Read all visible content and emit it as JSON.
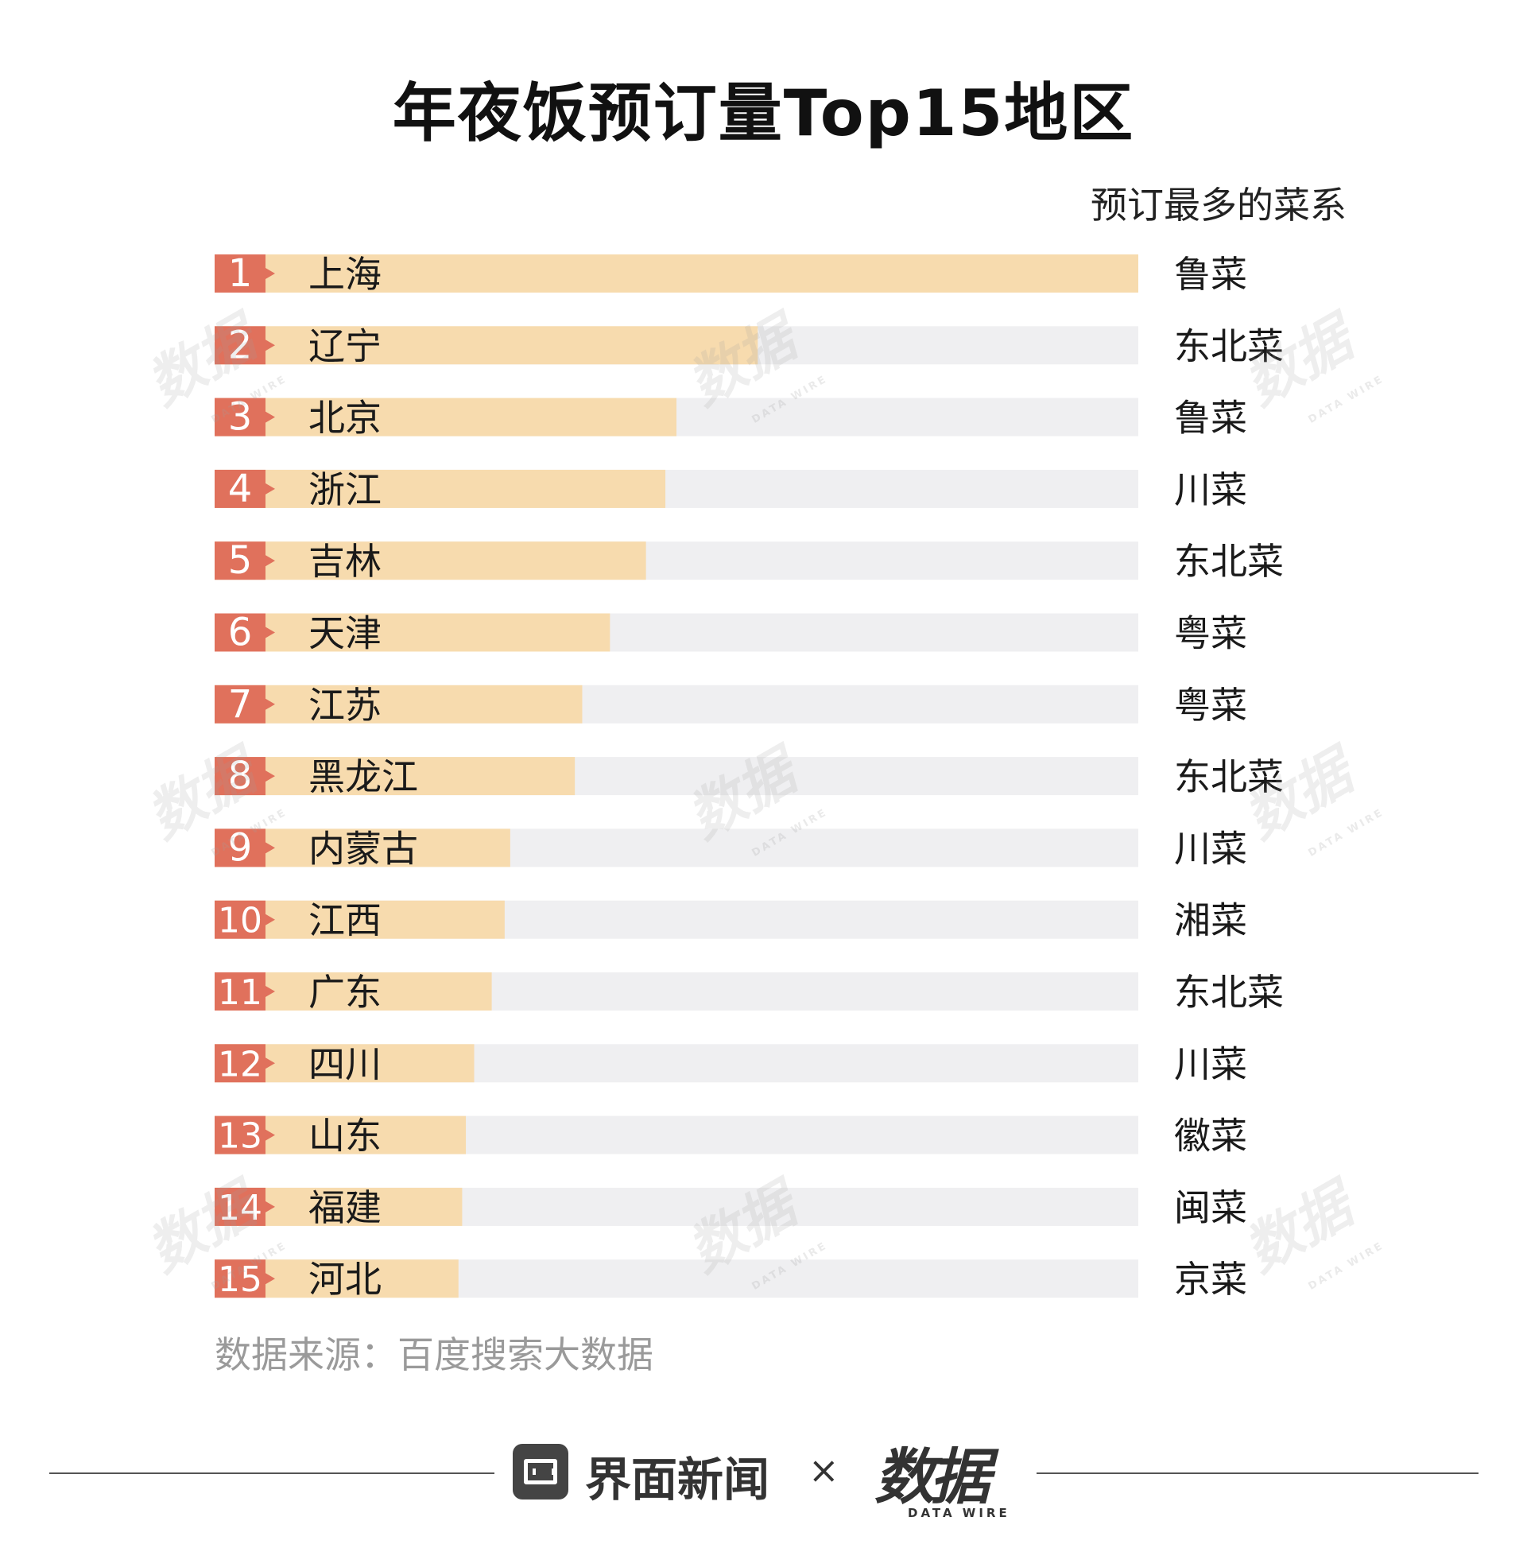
{
  "title": "年夜饭预订量Top15地区",
  "column_header": "预订最多的菜系",
  "source": "数据来源：百度搜索大数据",
  "footer": {
    "brand_left": "界面新闻",
    "separator": "×",
    "brand_right": "数据",
    "brand_right_sub": "DATA WIRE"
  },
  "watermark": {
    "text": "数据",
    "sub": "DATA WIRE"
  },
  "colors": {
    "rank_badge": "#e0715c",
    "bar_fill": "#f7dbae",
    "bar_track": "#efeff1",
    "text": "#1a1a1a"
  },
  "chart_data": {
    "type": "bar",
    "orientation": "horizontal",
    "title": "年夜饭预订量Top15地区",
    "xlim": [
      0,
      100
    ],
    "grid": false,
    "categories": [
      "上海",
      "辽宁",
      "北京",
      "浙江",
      "吉林",
      "天津",
      "江苏",
      "黑龙江",
      "内蒙古",
      "江西",
      "广东",
      "四川",
      "山东",
      "福建",
      "河北"
    ],
    "ranks": [
      "1",
      "2",
      "3",
      "4",
      "5",
      "6",
      "7",
      "8",
      "9",
      "10",
      "11",
      "12",
      "13",
      "14",
      "15"
    ],
    "values": [
      100,
      58.8,
      50,
      48.8,
      46.7,
      42.8,
      39.8,
      39,
      32,
      31.4,
      30,
      28.1,
      27.2,
      26.8,
      26.4
    ],
    "cuisines": [
      "鲁菜",
      "东北菜",
      "鲁菜",
      "川菜",
      "东北菜",
      "粤菜",
      "粤菜",
      "东北菜",
      "川菜",
      "湘菜",
      "东北菜",
      "川菜",
      "徽菜",
      "闽菜",
      "京菜"
    ]
  }
}
